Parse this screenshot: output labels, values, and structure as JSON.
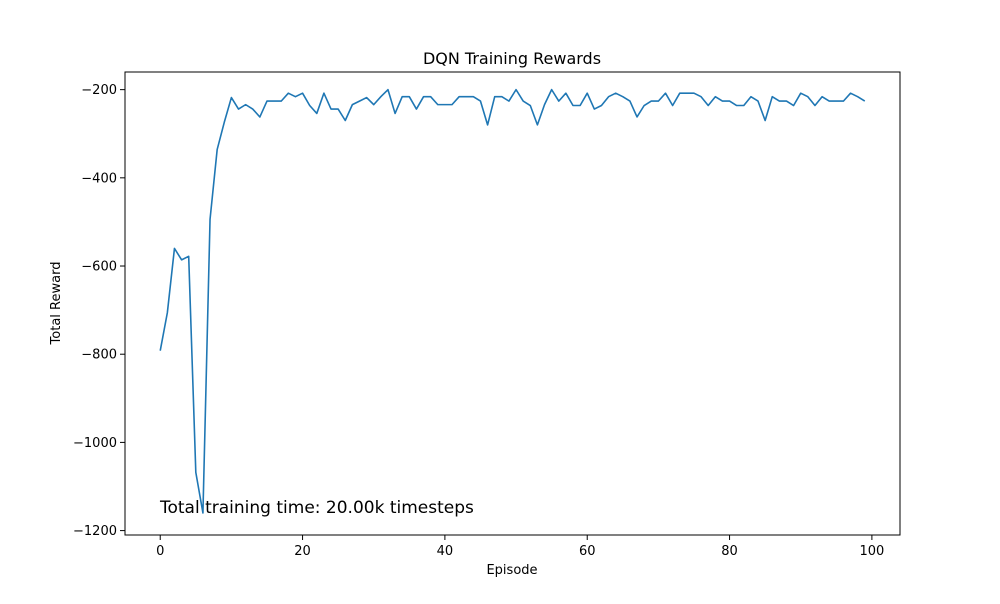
{
  "chart_data": {
    "type": "line",
    "title": "DQN Training Rewards",
    "xlabel": "Episode",
    "ylabel": "Total Reward",
    "xlim": [
      -4.95,
      103.95
    ],
    "ylim": [
      -1210,
      -160
    ],
    "xticks": [
      0,
      20,
      40,
      60,
      80,
      100
    ],
    "yticks": [
      -200,
      -400,
      -600,
      -800,
      -1000,
      -1200
    ],
    "xtick_labels": [
      "0",
      "20",
      "40",
      "60",
      "80",
      "100"
    ],
    "ytick_labels": [
      "−200",
      "−400",
      "−600",
      "−800",
      "−1000",
      "−1200"
    ],
    "grid": false,
    "annotation": "Total training time: 20.00k timesteps",
    "series": [
      {
        "color": "#1f77b4",
        "x": [
          0,
          1,
          2,
          3,
          4,
          5,
          6,
          7,
          8,
          9,
          10,
          11,
          12,
          13,
          14,
          15,
          16,
          17,
          18,
          19,
          20,
          21,
          22,
          23,
          24,
          25,
          26,
          27,
          28,
          29,
          30,
          31,
          32,
          33,
          34,
          35,
          36,
          37,
          38,
          39,
          40,
          41,
          42,
          43,
          44,
          45,
          46,
          47,
          48,
          49,
          50,
          51,
          52,
          53,
          54,
          55,
          56,
          57,
          58,
          59,
          60,
          61,
          62,
          63,
          64,
          65,
          66,
          67,
          68,
          69,
          70,
          71,
          72,
          73,
          74,
          75,
          76,
          77,
          78,
          79,
          80,
          81,
          82,
          83,
          84,
          85,
          86,
          87,
          88,
          89,
          90,
          91,
          92,
          93,
          94,
          95,
          96,
          97,
          98,
          99
        ],
        "y": [
          -792,
          -706,
          -560,
          -586,
          -578,
          -1068,
          -1160,
          -494,
          -336,
          -274,
          -218,
          -244,
          -234,
          -244,
          -262,
          -226,
          -226,
          -226,
          -208,
          -216,
          -208,
          -236,
          -254,
          -208,
          -244,
          -244,
          -270,
          -234,
          -226,
          -218,
          -234,
          -216,
          -200,
          -254,
          -216,
          -216,
          -244,
          -216,
          -216,
          -234,
          -234,
          -234,
          -216,
          -216,
          -216,
          -226,
          -280,
          -216,
          -216,
          -226,
          -200,
          -226,
          -236,
          -280,
          -234,
          -200,
          -226,
          -208,
          -236,
          -236,
          -208,
          -244,
          -236,
          -216,
          -208,
          -216,
          -226,
          -262,
          -236,
          -226,
          -226,
          -208,
          -236,
          -208,
          -208,
          -208,
          -216,
          -236,
          -216,
          -226,
          -226,
          -236,
          -236,
          -216,
          -226,
          -270,
          -216,
          -226,
          -226,
          -236,
          -208,
          -216,
          -236,
          -216,
          -226,
          -226,
          -226,
          -208,
          -216,
          -226
        ]
      }
    ]
  }
}
